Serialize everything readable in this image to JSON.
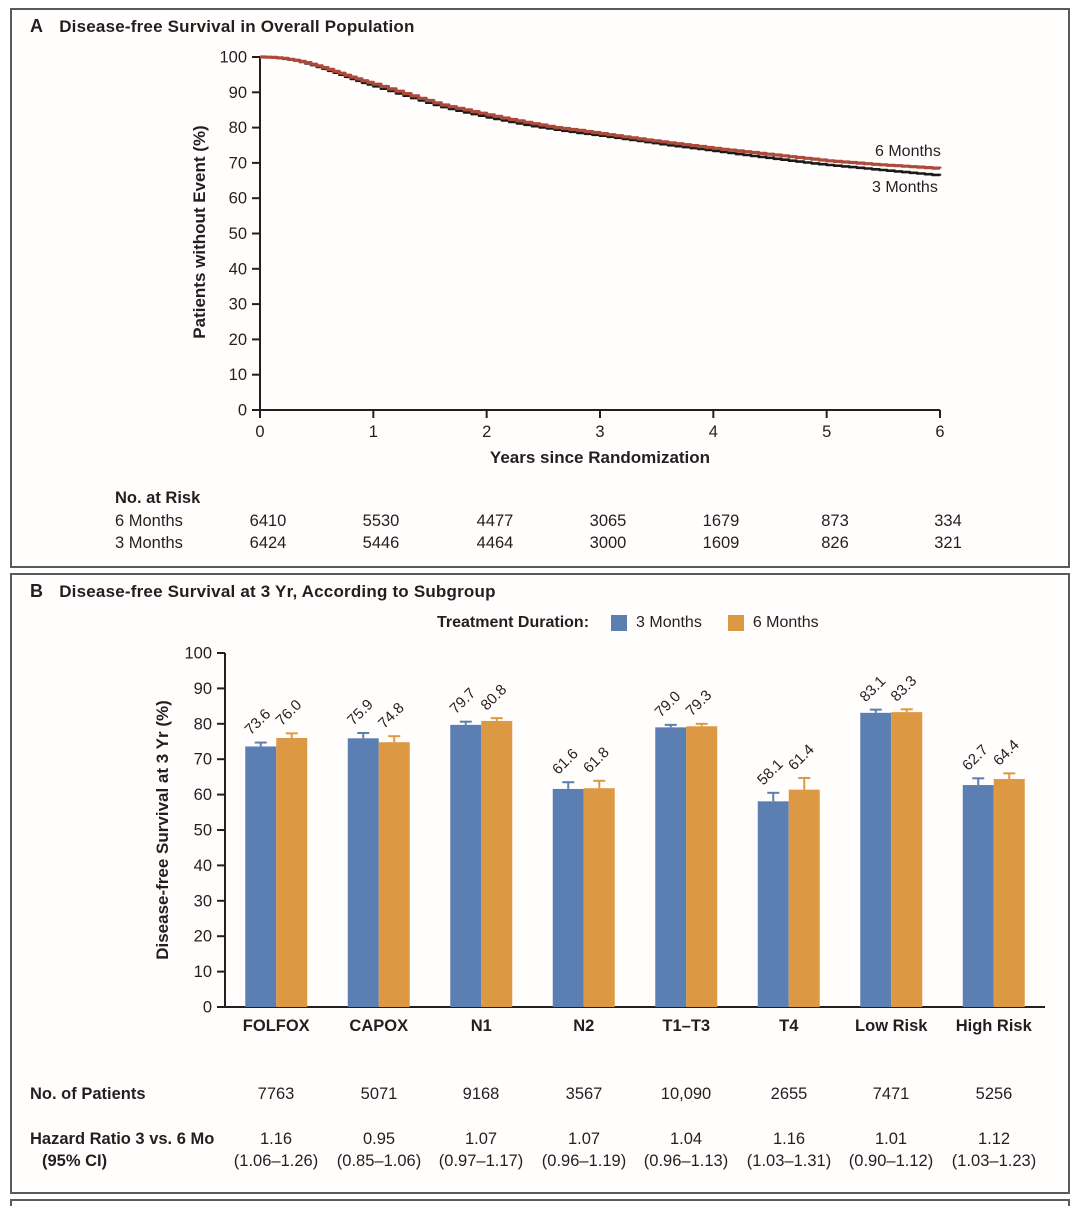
{
  "panelA": {
    "label": "A",
    "title": "Disease-free Survival in Overall Population",
    "ylabel": "Patients without Event (%)",
    "xlabel": "Years since Randomization",
    "curve_labels": {
      "six": "6 Months",
      "three": "3 Months"
    },
    "at_risk": {
      "header": "No. at Risk",
      "rows": [
        {
          "label": "6 Months",
          "values": [
            "6410",
            "5530",
            "4477",
            "3065",
            "1679",
            "873",
            "334"
          ]
        },
        {
          "label": "3 Months",
          "values": [
            "6424",
            "5446",
            "4464",
            "3000",
            "1609",
            "826",
            "321"
          ]
        }
      ]
    }
  },
  "panelB": {
    "label": "B",
    "title": "Disease-free Survival at 3 Yr, According to Subgroup",
    "ylabel": "Disease-free Survival at 3 Yr (%)",
    "legend": {
      "title": "Treatment Duration:",
      "items": [
        {
          "label": "3 Months",
          "color": "#5B7FB2"
        },
        {
          "label": "6 Months",
          "color": "#DD9843"
        }
      ]
    },
    "table": {
      "patients_label": "No. of Patients",
      "hr_label_line1": "Hazard Ratio 3 vs. 6 Mo",
      "hr_label_line2": "(95% CI)",
      "patients": [
        "7763",
        "5071",
        "9168",
        "3567",
        "10,090",
        "2655",
        "7471",
        "5256"
      ],
      "hr": [
        "1.16",
        "0.95",
        "1.07",
        "1.07",
        "1.04",
        "1.16",
        "1.01",
        "1.12"
      ],
      "ci": [
        "(1.06–1.26)",
        "(0.85–1.06)",
        "(0.97–1.17)",
        "(0.96–1.19)",
        "(0.96–1.13)",
        "(1.03–1.31)",
        "(0.90–1.12)",
        "(1.03–1.23)"
      ]
    }
  },
  "colors": {
    "curve_6mo": "#AD4A3C",
    "curve_3mo": "#1C1A19",
    "bar_3mo": "#5B7FB2",
    "bar_6mo": "#DD9843",
    "border": "#595A5E",
    "text": "#231F20"
  },
  "chart_data": [
    {
      "type": "line",
      "title": "Disease-free Survival in Overall Population",
      "xlabel": "Years since Randomization",
      "ylabel": "Patients without Event (%)",
      "xlim": [
        0,
        6
      ],
      "ylim": [
        0,
        100
      ],
      "xticks": [
        0,
        1,
        2,
        3,
        4,
        5,
        6
      ],
      "yticks": [
        0,
        10,
        20,
        30,
        40,
        50,
        60,
        70,
        80,
        90,
        100
      ],
      "grid": false,
      "legend_position": "end-of-line-labels",
      "series": [
        {
          "name": "3 Months",
          "color": "#1C1A19",
          "width": 2.6,
          "x": [
            0,
            0.1,
            0.2,
            0.3,
            0.4,
            0.5,
            0.6,
            0.7,
            0.8,
            0.9,
            1.0,
            1.2,
            1.4,
            1.6,
            1.8,
            2.0,
            2.2,
            2.4,
            2.6,
            2.8,
            3.0,
            3.2,
            3.4,
            3.6,
            3.8,
            4.0,
            4.2,
            4.4,
            4.6,
            4.8,
            5.0,
            5.2,
            5.4,
            5.6,
            5.8,
            6.0
          ],
          "y": [
            100,
            99.9,
            99.5,
            99.0,
            98.2,
            97.2,
            96.1,
            95.0,
            93.8,
            92.7,
            91.7,
            89.7,
            87.7,
            85.8,
            84.3,
            82.9,
            81.6,
            80.4,
            79.4,
            78.5,
            77.7,
            76.8,
            75.9,
            75.0,
            74.2,
            73.4,
            72.5,
            71.7,
            70.9,
            70.1,
            69.4,
            68.8,
            68.2,
            67.6,
            67.0,
            66.4
          ]
        },
        {
          "name": "6 Months",
          "color": "#AD4A3C",
          "width": 3.2,
          "x": [
            0,
            0.1,
            0.2,
            0.3,
            0.4,
            0.5,
            0.6,
            0.7,
            0.8,
            0.9,
            1.0,
            1.2,
            1.4,
            1.6,
            1.8,
            2.0,
            2.2,
            2.4,
            2.6,
            2.8,
            3.0,
            3.2,
            3.4,
            3.6,
            3.8,
            4.0,
            4.2,
            4.4,
            4.6,
            4.8,
            5.0,
            5.2,
            5.4,
            5.6,
            5.8,
            6.0
          ],
          "y": [
            100,
            99.9,
            99.6,
            99.1,
            98.4,
            97.5,
            96.5,
            95.4,
            94.3,
            93.3,
            92.3,
            90.3,
            88.3,
            86.4,
            85.0,
            83.6,
            82.3,
            81.1,
            80.0,
            79.2,
            78.3,
            77.4,
            76.5,
            75.7,
            74.9,
            74.1,
            73.4,
            72.7,
            72.0,
            71.3,
            70.6,
            70.1,
            69.6,
            69.2,
            68.8,
            68.4
          ]
        }
      ],
      "at_risk": {
        "6 Months": [
          6410,
          5530,
          4477,
          3065,
          1679,
          873,
          334
        ],
        "3 Months": [
          6424,
          5446,
          4464,
          3000,
          1609,
          826,
          321
        ]
      }
    },
    {
      "type": "bar",
      "title": "Disease-free Survival at 3 Yr, According to Subgroup",
      "ylabel": "Disease-free Survival at 3 Yr (%)",
      "ylim": [
        0,
        100
      ],
      "yticks": [
        0,
        10,
        20,
        30,
        40,
        50,
        60,
        70,
        80,
        90,
        100
      ],
      "grid": false,
      "legend_position": "top",
      "categories": [
        "FOLFOX",
        "CAPOX",
        "N1",
        "N2",
        "T1–T3",
        "T4",
        "Low Risk",
        "High Risk"
      ],
      "series": [
        {
          "name": "3 Months",
          "color": "#5B7FB2",
          "values": [
            73.6,
            75.9,
            79.7,
            61.6,
            79.0,
            58.1,
            83.1,
            62.7
          ],
          "errors_up": [
            1.1,
            1.5,
            0.9,
            1.9,
            0.7,
            2.4,
            0.9,
            1.9
          ]
        },
        {
          "name": "6 Months",
          "color": "#DD9843",
          "values": [
            76.0,
            74.8,
            80.8,
            61.8,
            79.3,
            61.4,
            83.3,
            64.4
          ],
          "errors_up": [
            1.3,
            1.7,
            0.8,
            2.1,
            0.7,
            3.3,
            0.8,
            1.6
          ]
        }
      ],
      "patients": [
        7763,
        5071,
        9168,
        3567,
        10090,
        2655,
        7471,
        5256
      ],
      "hazard_ratio_3_vs_6": [
        1.16,
        0.95,
        1.07,
        1.07,
        1.04,
        1.16,
        1.01,
        1.12
      ],
      "hazard_ratio_ci": [
        "1.06–1.26",
        "0.85–1.06",
        "0.97–1.17",
        "0.96–1.19",
        "0.96–1.13",
        "1.03–1.31",
        "0.90–1.12",
        "1.03–1.23"
      ]
    }
  ]
}
